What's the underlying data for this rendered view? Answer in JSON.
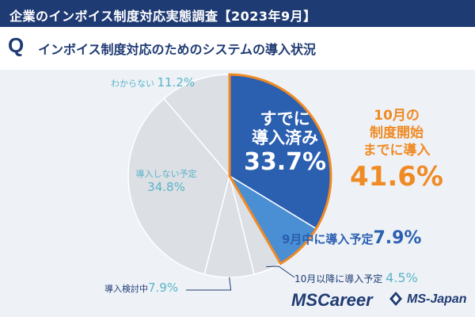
{
  "header": {
    "title": "企業のインボイス制度対応実態調査【2023年9月】"
  },
  "question": {
    "mark": "Q",
    "text": "インボイス制度対応のためのシステムの導入状況"
  },
  "chart_data": {
    "type": "pie",
    "categories": [
      "すでに導入済み",
      "9月中に導入予定",
      "10月以降に導入予定",
      "導入検討中",
      "導入しない予定",
      "わからない"
    ],
    "values": [
      33.7,
      7.9,
      4.5,
      7.9,
      34.8,
      11.2
    ],
    "labels": {
      "already": {
        "line1": "すでに",
        "line2": "導入済み",
        "pct": "33.7%"
      },
      "sept": {
        "text": "9月中に導入予定",
        "pct": "7.9%"
      },
      "after_oct": {
        "text": "10月以降に導入予定",
        "pct": "4.5%"
      },
      "considering": {
        "text": "導入検討中",
        "pct": "7.9%"
      },
      "not_planned": {
        "text": "導入しない予定",
        "pct": "34.8%"
      },
      "unknown": {
        "text": "わからない",
        "pct": "11.2%"
      }
    },
    "highlight": {
      "line1": "10月の",
      "line2": "制度開始",
      "line3": "までに導入",
      "pct": "41.6%"
    },
    "colors": {
      "already": "#2b5fb0",
      "sept": "#4a8fd4",
      "others": "#dcdfe4",
      "outline": "#f08a24",
      "highlight_text": "#f08a24"
    }
  },
  "logos": {
    "career": {
      "ms": "MS",
      "rest": "Career"
    },
    "japan": "MS-Japan"
  }
}
